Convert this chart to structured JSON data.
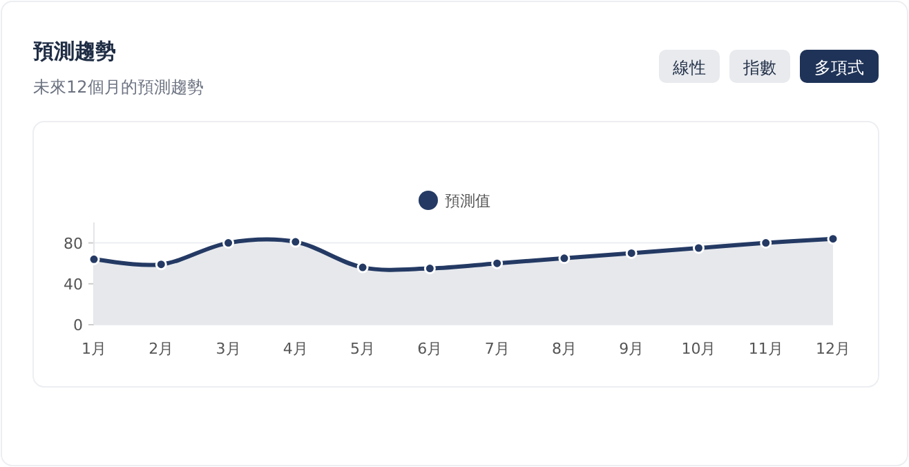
{
  "chart_data": {
    "type": "area",
    "title": "預測趨勢",
    "subtitle": "未來12個月的預測趨勢",
    "annotations": [
      "線性",
      "指數",
      "多項式"
    ],
    "categories": [
      "1月",
      "2月",
      "3月",
      "4月",
      "5月",
      "6月",
      "7月",
      "8月",
      "9月",
      "10月",
      "11月",
      "12月"
    ],
    "series": [
      {
        "name": "預測值",
        "color": "#243a64",
        "values": [
          64,
          59,
          80,
          81,
          56,
          55,
          60,
          65,
          70,
          75,
          80,
          84
        ]
      }
    ],
    "ylim": [
      0,
      100
    ],
    "yticks": [
      0,
      40,
      80
    ],
    "grid": "y",
    "legend": "top",
    "marker": "circle",
    "line_style": "solid"
  }
}
